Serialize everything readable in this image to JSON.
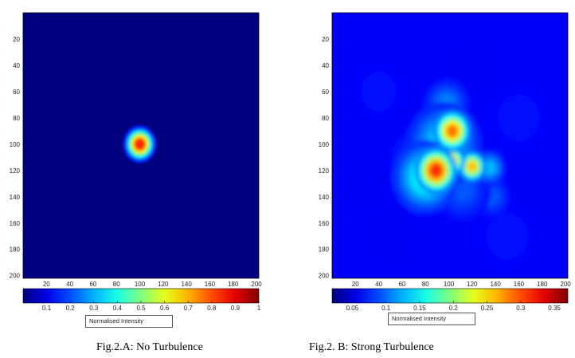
{
  "chart_data": [
    {
      "type": "heatmap",
      "caption": "Fig.2.A: No Turbulence",
      "xticks": [
        20,
        40,
        60,
        80,
        100,
        120,
        140,
        160,
        180,
        200
      ],
      "yticks": [
        20,
        40,
        60,
        80,
        100,
        120,
        140,
        160,
        180,
        200
      ],
      "xlim": [
        0,
        200
      ],
      "ylim": [
        0,
        200
      ],
      "colormap": "jet",
      "colorbar_label": "Normalised Intensity",
      "colorbar_ticks": [
        "0.1",
        "0.2",
        "0.3",
        "0.4",
        "0.5",
        "0.6",
        "0.7",
        "0.8",
        "0.9",
        "1"
      ],
      "colorbar_range": [
        0,
        1
      ],
      "peaks": [
        {
          "x": 100,
          "y": 100,
          "value": 1,
          "width": 7
        }
      ]
    },
    {
      "type": "heatmap",
      "caption": "Fig.2. B:  Strong Turbulence",
      "xticks": [
        20,
        40,
        60,
        80,
        100,
        120,
        140,
        160,
        180,
        200
      ],
      "yticks": [
        20,
        40,
        60,
        80,
        100,
        120,
        140,
        160,
        180,
        200
      ],
      "xlim": [
        0,
        200
      ],
      "ylim": [
        0,
        200
      ],
      "colormap": "jet",
      "colorbar_label": "Normalised Intensity",
      "colorbar_ticks": [
        "0.05",
        "0.1",
        "0.15",
        "0.2",
        "0.25",
        "0.3",
        "0.35"
      ],
      "colorbar_range": [
        0.02,
        0.37
      ],
      "peaks": [
        {
          "x": 89,
          "y": 120,
          "value": 0.36,
          "width": 9
        },
        {
          "x": 103,
          "y": 90,
          "value": 0.33,
          "width": 8
        },
        {
          "x": 102,
          "y": 113,
          "value": 0.32,
          "width": 6
        },
        {
          "x": 120,
          "y": 117,
          "value": 0.3,
          "width": 6
        },
        {
          "x": 80,
          "y": 125,
          "value": 0.18,
          "width": 14
        },
        {
          "x": 96,
          "y": 100,
          "value": 0.16,
          "width": 16
        },
        {
          "x": 98,
          "y": 70,
          "value": 0.12,
          "width": 10
        },
        {
          "x": 135,
          "y": 118,
          "value": 0.14,
          "width": 7
        },
        {
          "x": 137,
          "y": 140,
          "value": 0.1,
          "width": 8
        },
        {
          "x": 112,
          "y": 135,
          "value": 0.1,
          "width": 12
        },
        {
          "x": 70,
          "y": 110,
          "value": 0.08,
          "width": 12
        },
        {
          "x": 40,
          "y": 60,
          "value": 0.07,
          "width": 12
        },
        {
          "x": 160,
          "y": 80,
          "value": 0.07,
          "width": 14
        },
        {
          "x": 150,
          "y": 170,
          "value": 0.07,
          "width": 14
        },
        {
          "x": 50,
          "y": 170,
          "value": 0.06,
          "width": 14
        },
        {
          "x": 180,
          "y": 140,
          "value": 0.06,
          "width": 12
        },
        {
          "x": 120,
          "y": 40,
          "value": 0.06,
          "width": 14
        },
        {
          "x": 30,
          "y": 130,
          "value": 0.06,
          "width": 12
        }
      ]
    }
  ]
}
